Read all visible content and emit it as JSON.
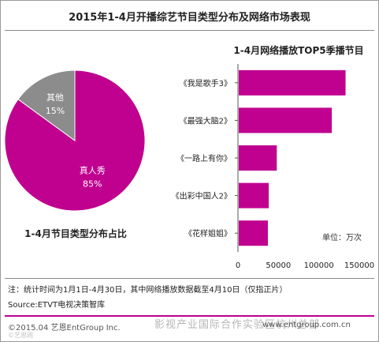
{
  "title": "2015年1-4月开播综艺节目类型分布及网络市场表现",
  "note": "注：统计时间为1月1日-4月30日，其中网络播放数据截至4月10日（仅指正片）",
  "source": "Source:ETVT电视决策智库",
  "footer_left": "©2015.04  艺恩EntGroup Inc.",
  "footer_right": "www.entgroup.com.cn",
  "watermark": "影视产业国际合作实验区杭州总部",
  "watermark_small": "©艺恩网",
  "colors": {
    "accent": "#c0008f",
    "grey": "#8c8c8c"
  },
  "chart_data": [
    {
      "type": "pie",
      "title": "1-4月节目类型分布占比",
      "slices": [
        {
          "label": "真人秀",
          "value": 85,
          "display": "85%",
          "color": "#c0008f"
        },
        {
          "label": "其他",
          "value": 15,
          "display": "15%",
          "color": "#8c8c8c"
        }
      ]
    },
    {
      "type": "bar",
      "orientation": "horizontal",
      "title": "1-4月网络播放TOP5季播节目",
      "unit_label": "单位：万次",
      "categories": [
        "《我是歌手3》",
        "《最强大脑2》",
        "《一路上有你》",
        "《出彩中国人2》",
        "《花样姐姐》"
      ],
      "values": [
        133000,
        116000,
        48000,
        38000,
        37000
      ],
      "xlim": [
        0,
        150000
      ],
      "xticks": [
        0,
        50000,
        100000,
        150000
      ],
      "xtick_labels": [
        "0",
        "50000",
        "100000",
        "150000"
      ],
      "grid": false,
      "color": "#c0008f"
    }
  ]
}
